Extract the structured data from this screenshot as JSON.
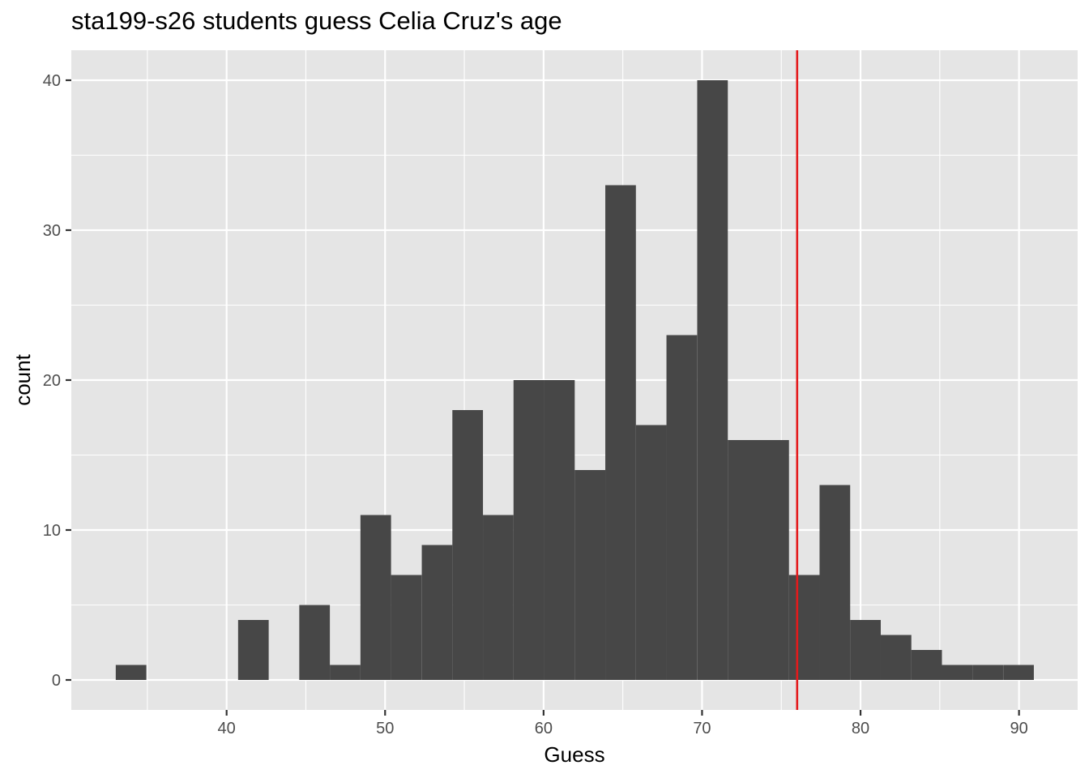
{
  "chart_data": {
    "type": "bar",
    "title": "sta199-s26 students guess Celia Cruz's age",
    "xlabel": "Guess",
    "ylabel": "count",
    "bin_width": 1.931,
    "bins": [
      {
        "x": 33.97,
        "count": 1
      },
      {
        "x": 35.9,
        "count": 0
      },
      {
        "x": 37.83,
        "count": 0
      },
      {
        "x": 39.76,
        "count": 0
      },
      {
        "x": 41.69,
        "count": 4
      },
      {
        "x": 43.62,
        "count": 0
      },
      {
        "x": 45.55,
        "count": 5
      },
      {
        "x": 47.48,
        "count": 1
      },
      {
        "x": 49.41,
        "count": 11
      },
      {
        "x": 51.34,
        "count": 7
      },
      {
        "x": 53.28,
        "count": 9
      },
      {
        "x": 55.21,
        "count": 18
      },
      {
        "x": 57.14,
        "count": 11
      },
      {
        "x": 59.07,
        "count": 20
      },
      {
        "x": 61.0,
        "count": 20
      },
      {
        "x": 62.93,
        "count": 14
      },
      {
        "x": 64.86,
        "count": 33
      },
      {
        "x": 66.79,
        "count": 17
      },
      {
        "x": 68.72,
        "count": 23
      },
      {
        "x": 70.66,
        "count": 40
      },
      {
        "x": 72.59,
        "count": 16
      },
      {
        "x": 74.52,
        "count": 16
      },
      {
        "x": 76.45,
        "count": 7
      },
      {
        "x": 78.38,
        "count": 13
      },
      {
        "x": 80.31,
        "count": 4
      },
      {
        "x": 82.24,
        "count": 3
      },
      {
        "x": 84.17,
        "count": 2
      },
      {
        "x": 86.1,
        "count": 1
      },
      {
        "x": 88.03,
        "count": 1
      },
      {
        "x": 89.97,
        "count": 1
      }
    ],
    "reference_line": {
      "x": 76,
      "color": "#e41a1c"
    },
    "xlim": [
      30.2,
      93.7
    ],
    "ylim": [
      -2,
      42
    ],
    "x_ticks": [
      40,
      50,
      60,
      70,
      80,
      90
    ],
    "y_ticks": [
      0,
      10,
      20,
      30,
      40
    ],
    "grid": true,
    "colors": {
      "panel": "#e5e5e5",
      "bar": "#474747",
      "grid": "#ffffff",
      "axis_text": "#4d4d4d"
    }
  }
}
